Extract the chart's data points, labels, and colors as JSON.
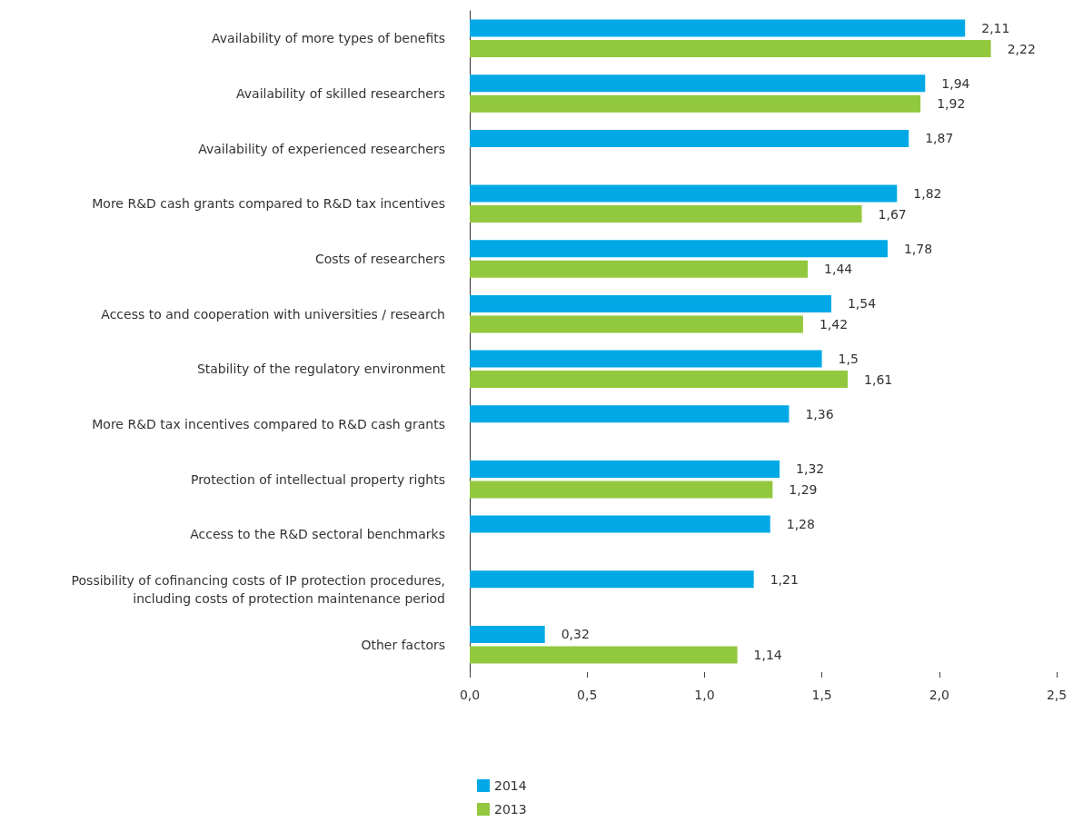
{
  "chart_data": {
    "type": "bar",
    "orientation": "horizontal",
    "categories": [
      "Availability of more types of benefits",
      "Availability of skilled researchers",
      "Availability of experienced researchers",
      "More R&D cash grants compared to R&D tax incentives",
      "Costs of researchers",
      "Access to and cooperation with universities / research",
      "Stability of the regulatory environment",
      "More R&D tax incentives compared to R&D cash grants",
      "Protection of intellectual property rights",
      "Access to the R&D sectoral benchmarks",
      "Possibility of cofinancing costs of IP protection procedures,\nincluding costs of protection maintenance period",
      "Other factors"
    ],
    "series": [
      {
        "name": "2014",
        "color": "#00a9e6",
        "values": [
          2.11,
          1.94,
          1.87,
          1.82,
          1.78,
          1.54,
          1.5,
          1.36,
          1.32,
          1.28,
          1.21,
          0.32
        ],
        "value_labels": [
          "2,11",
          "1,94",
          "1,87",
          "1,82",
          "1,78",
          "1,54",
          "1,5",
          "1,36",
          "1,32",
          "1,28",
          "1,21",
          "0,32"
        ]
      },
      {
        "name": "2013",
        "color": "#92c83e",
        "values": [
          2.22,
          1.92,
          null,
          1.67,
          1.44,
          1.42,
          1.61,
          null,
          1.29,
          null,
          null,
          1.14
        ],
        "value_labels": [
          "2,22",
          "1,92",
          null,
          "1,67",
          "1,44",
          "1,42",
          "1,61",
          null,
          "1,29",
          null,
          null,
          "1,14"
        ]
      }
    ],
    "xlim": [
      0,
      2.5
    ],
    "xticks": [
      {
        "value": 0,
        "label": "0,0"
      },
      {
        "value": 0.5,
        "label": "0,5"
      },
      {
        "value": 1,
        "label": "1,0"
      },
      {
        "value": 1.5,
        "label": "1,5"
      },
      {
        "value": 2,
        "label": "2,0"
      },
      {
        "value": 2.5,
        "label": "2,5"
      }
    ],
    "grid": false,
    "legend": "bottom"
  }
}
